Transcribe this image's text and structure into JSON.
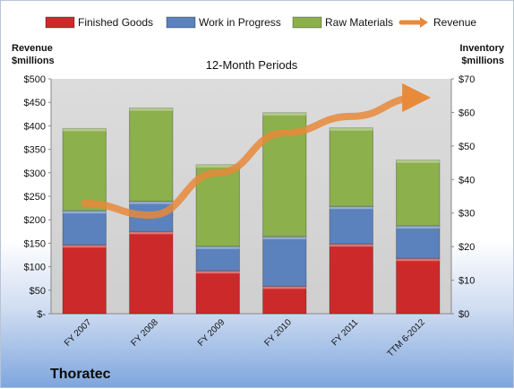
{
  "chart_data": {
    "type": "bar",
    "stacked": true,
    "title": "12-Month Periods",
    "company": "Thoratec",
    "y_left_label": [
      "Revenue",
      "$millions"
    ],
    "y_right_label": [
      "Inventory",
      "$millions"
    ],
    "categories": [
      "FY 2007",
      "FY 2008",
      "FY 2009",
      "FY 2010",
      "FY 2011",
      "TTM 6-2012"
    ],
    "y_left_lim": [
      0,
      500
    ],
    "y_right_lim": [
      0,
      70
    ],
    "y_left_ticks": [
      "$-",
      "$50",
      "$100",
      "$150",
      "$200",
      "$250",
      "$300",
      "$350",
      "$400",
      "$450",
      "$500"
    ],
    "y_right_ticks": [
      "$0",
      "$10",
      "$20",
      "$30",
      "$40",
      "$50",
      "$60",
      "$70"
    ],
    "grid": false,
    "legend_position": "top",
    "series": [
      {
        "name": "Finished Goods",
        "axis": "right",
        "color": "#cc2a2a",
        "values": [
          20.5,
          24.5,
          12.8,
          8.2,
          20.8,
          16.5
        ]
      },
      {
        "name": "Work in Progress",
        "axis": "right",
        "color": "#5b82bd",
        "values": [
          10.2,
          9.0,
          7.3,
          14.8,
          11.2,
          9.7
        ]
      },
      {
        "name": "Raw Materials",
        "axis": "right",
        "color": "#8bb04c",
        "values": [
          24.5,
          27.8,
          24.3,
          36.9,
          23.4,
          19.6
        ]
      },
      {
        "name": "Revenue",
        "axis": "left",
        "type": "line",
        "color": "#e88a3a",
        "values": [
          235,
          210,
          300,
          385,
          420,
          460
        ]
      }
    ]
  }
}
